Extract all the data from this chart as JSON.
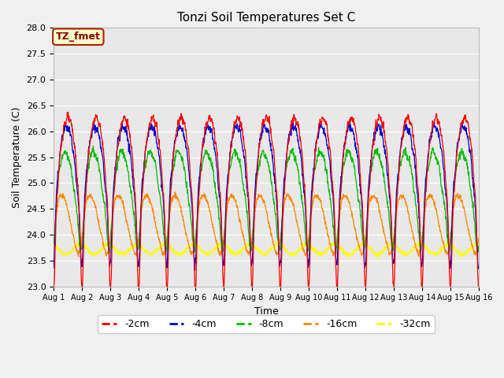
{
  "title": "Tonzi Soil Temperatures Set C",
  "xlabel": "Time",
  "ylabel": "Soil Temperature (C)",
  "ylim": [
    23.0,
    28.0
  ],
  "xlim": [
    0,
    15
  ],
  "yticks": [
    23.0,
    23.5,
    24.0,
    24.5,
    25.0,
    25.5,
    26.0,
    26.5,
    27.0,
    27.5,
    28.0
  ],
  "xtick_labels": [
    "Aug 1",
    "Aug 2",
    "Aug 3",
    "Aug 4",
    "Aug 5",
    "Aug 6",
    "Aug 7",
    "Aug 8",
    "Aug 9",
    "Aug 10",
    "Aug 11",
    "Aug 12",
    "Aug 13",
    "Aug 14",
    "Aug 15",
    "Aug 16"
  ],
  "annotation_text": "TZ_fmet",
  "annotation_bg": "#ffffcc",
  "annotation_border": "#aa2200",
  "colors": {
    "-2cm": "#ff0000",
    "-4cm": "#0000cc",
    "-8cm": "#00bb00",
    "-16cm": "#ff8800",
    "-32cm": "#ffff00"
  },
  "background_color": "#e8e8e8",
  "fig_color": "#f0f0f0",
  "n_points": 1440,
  "days": 15,
  "mean_2cm": 25.3,
  "amp_2cm": 2.35,
  "mean_4cm": 25.25,
  "amp_4cm": 1.85,
  "phase_4cm": 0.18,
  "mean_8cm": 24.9,
  "amp_8cm": 1.2,
  "phase_8cm": 0.45,
  "mean_16cm": 24.25,
  "amp_16cm": 0.62,
  "phase_16cm": 1.1,
  "mean_32cm": 23.72,
  "amp_32cm": 0.1,
  "phase_32cm": 2.0
}
